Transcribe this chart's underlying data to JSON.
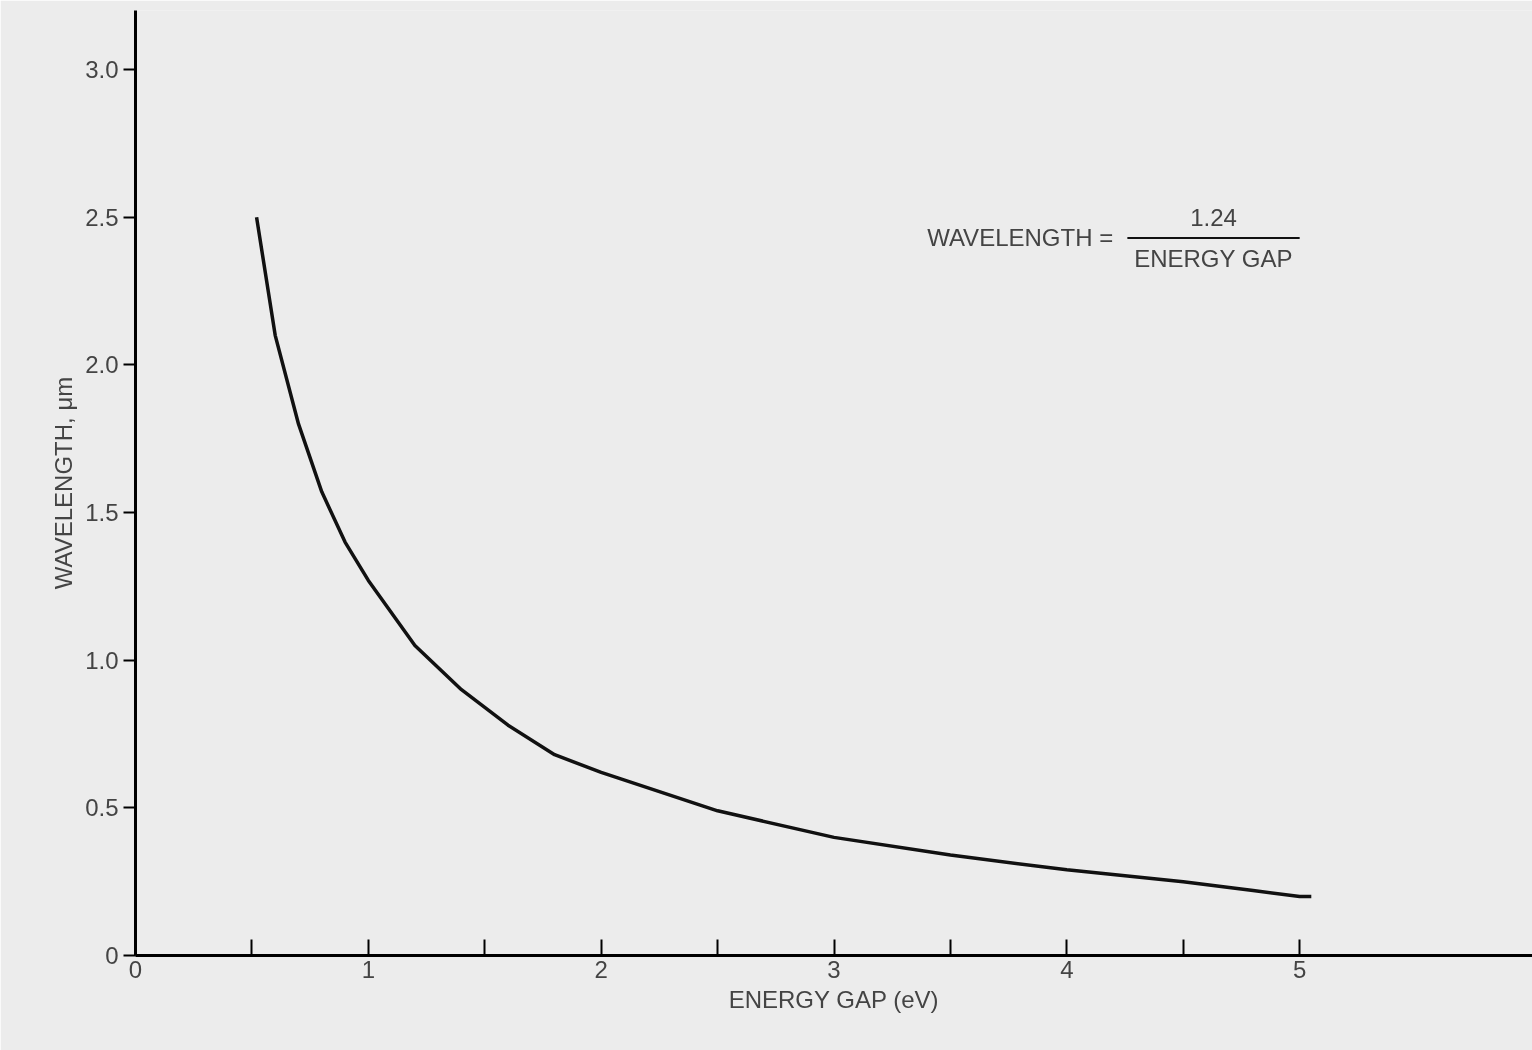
{
  "chart_data": {
    "type": "line",
    "xlabel": "ENERGY GAP (eV)",
    "ylabel": "WAVELENGTH, μm",
    "annotations": [
      "WAVELENGTH =",
      "1.24",
      "ENERGY GAP"
    ],
    "x": [
      0.52,
      0.6,
      0.7,
      0.8,
      0.9,
      1.0,
      1.2,
      1.4,
      1.6,
      1.8,
      2.0,
      2.5,
      3.0,
      3.5,
      4.0,
      4.5,
      4.8,
      5.0,
      5.05
    ],
    "series": [
      {
        "color": "#111111",
        "values": [
          2.5,
          2.1,
          1.8,
          1.57,
          1.4,
          1.27,
          1.05,
          0.9,
          0.78,
          0.68,
          0.62,
          0.49,
          0.4,
          0.34,
          0.29,
          0.25,
          0.22,
          0.2,
          0.2
        ]
      }
    ],
    "xlim": [
      0,
      6
    ],
    "ylim": [
      0,
      3.2
    ],
    "xticks": [
      0,
      {
        "value": 0.5,
        "label": null
      },
      1,
      {
        "value": 1.5,
        "label": null
      },
      2,
      {
        "value": 2.5,
        "label": null
      },
      3,
      {
        "value": 3.5,
        "label": null
      },
      4,
      {
        "value": 4.5,
        "label": null
      },
      5
    ],
    "yticks": [
      0,
      0.5,
      {
        "value": 1,
        "label": "1.0"
      },
      1.5,
      {
        "value": 2,
        "label": "2.0"
      },
      2.5,
      {
        "value": 3,
        "label": "3.0"
      }
    ],
    "grid": false,
    "marker": "none",
    "line_style": "solid"
  }
}
